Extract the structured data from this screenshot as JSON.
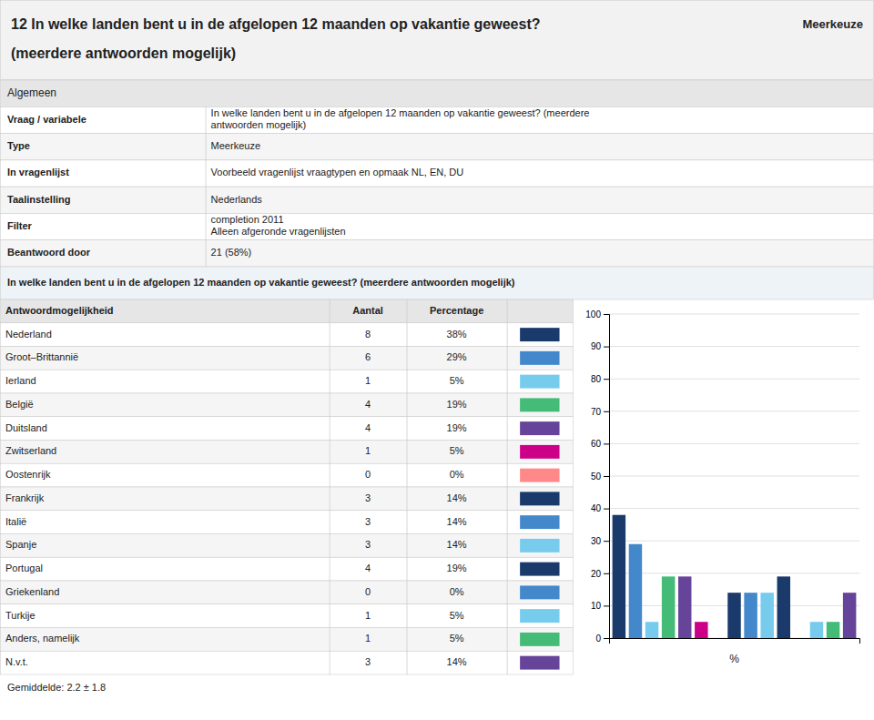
{
  "chart_data": {
    "type": "bar",
    "title": "12 In welke landen bent u in de afgelopen 12 maanden op vakantie geweest?",
    "subtitle": "(meerdere antwoorden mogelijk)",
    "annotations": [
      "Meerkeuze",
      "Algemeen",
      "Vraag / variabele",
      "In welke landen bent u in de afgelopen 12 maanden op vakantie geweest? (meerdere\nantwoorden mogelijk)",
      "Type",
      "Meerkeuze",
      "In vragenlijst",
      "Voorbeeld vragenlijst vraagtypen en opmaak NL, EN, DU",
      "Taalinstelling",
      "Nederlands",
      "Filter",
      "completion 2011\nAlleen afgeronde vragenlijsten",
      "Beantwoord door",
      "21 (58%)",
      "In welke landen bent u in de afgelopen 12 maanden op vakantie geweest? (meerdere antwoorden mogelijk)",
      "Antwoordmogelijkheid",
      "Aantal",
      "Percentage",
      "Gemiddelde: 2.2 ± 1.8"
    ],
    "categories": [
      "Nederland",
      "Groot–Brittannië",
      "Ierland",
      "België",
      "Duitsland",
      "Zwitserland",
      "Oostenrijk",
      "Frankrijk",
      "Italië",
      "Spanje",
      "Portugal",
      "Griekenland",
      "Turkije",
      "Anders, namelijk",
      "N.v.t."
    ],
    "counts": [
      8,
      6,
      1,
      4,
      4,
      1,
      0,
      3,
      3,
      3,
      4,
      0,
      1,
      1,
      3
    ],
    "values": [
      38,
      29,
      5,
      19,
      19,
      5,
      0,
      14,
      14,
      14,
      19,
      0,
      5,
      5,
      14
    ],
    "value_labels": [
      "38%",
      "29%",
      "5%",
      "19%",
      "19%",
      "5%",
      "0%",
      "14%",
      "14%",
      "14%",
      "19%",
      "0%",
      "5%",
      "5%",
      "14%"
    ],
    "colors": [
      "#1a3a6b",
      "#4488cc",
      "#77ccee",
      "#44bb77",
      "#664499",
      "#cc0088",
      "#ff8888",
      "#1a3a6b",
      "#4488cc",
      "#77ccee",
      "#1a3a6b",
      "#4488cc",
      "#77ccee",
      "#44bb77",
      "#664499"
    ],
    "xlabel": "%",
    "ylim": [
      0,
      100
    ],
    "yticks": [
      0,
      10,
      20,
      30,
      40,
      50,
      60,
      70,
      80,
      90,
      100
    ],
    "grid": true,
    "tick_labels": "y"
  }
}
